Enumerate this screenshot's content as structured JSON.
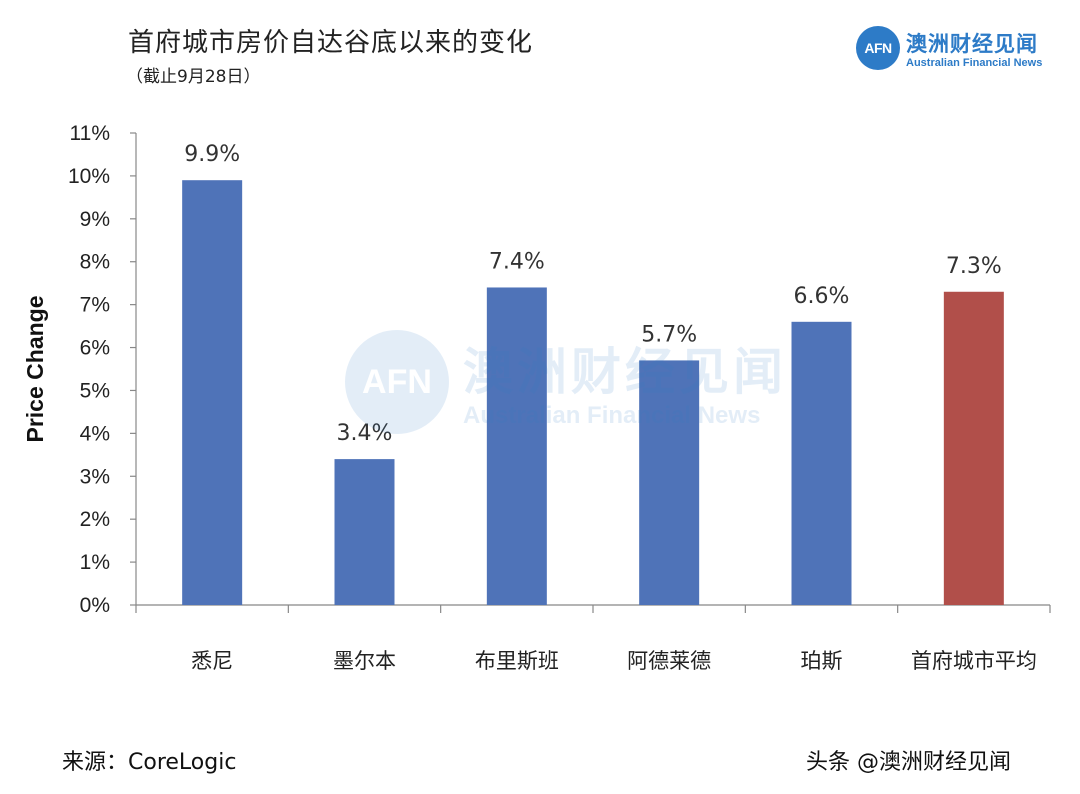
{
  "title": "首府城市房价自达谷底以来的变化",
  "subtitle": "（截止9月28日）",
  "logo": {
    "circle_text": "AFN",
    "name_cn": "澳洲财经见闻",
    "name_en": "Australian Financial News"
  },
  "watermark": {
    "circle_text": "AFN",
    "name_cn": "澳洲财经见闻",
    "name_en": "Australian Financial News"
  },
  "source": "来源：CoreLogic",
  "footer_watermark": "头条 @澳洲财经见闻",
  "chart_data": {
    "type": "bar",
    "title": "首府城市房价自达谷底以来的变化",
    "subtitle": "（截止9月28日）",
    "xlabel": "",
    "ylabel": "Price Change",
    "categories": [
      "悉尼",
      "墨尔本",
      "布里斯班",
      "阿德莱德",
      "珀斯",
      "首府城市平均"
    ],
    "values": [
      9.9,
      3.4,
      7.4,
      5.7,
      6.6,
      7.3
    ],
    "data_labels": [
      "9.9%",
      "3.4%",
      "7.4%",
      "5.7%",
      "6.6%",
      "7.3%"
    ],
    "bar_colors": [
      "#4f73b8",
      "#4f73b8",
      "#4f73b8",
      "#4f73b8",
      "#4f73b8",
      "#b14f4a"
    ],
    "ylim": [
      0,
      11
    ],
    "yticks": [
      0,
      1,
      2,
      3,
      4,
      5,
      6,
      7,
      8,
      9,
      10,
      11
    ],
    "ytick_labels": [
      "0%",
      "1%",
      "2%",
      "3%",
      "4%",
      "5%",
      "6%",
      "7%",
      "8%",
      "9%",
      "10%",
      "11%"
    ],
    "grid": false,
    "legend": "none"
  }
}
